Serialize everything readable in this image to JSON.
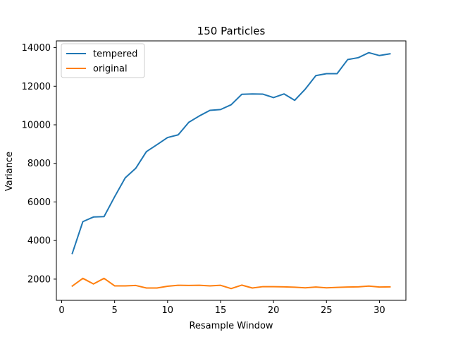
{
  "chart_data": {
    "type": "line",
    "title": "150 Particles",
    "xlabel": "Resample Window",
    "ylabel": "Variance",
    "xlim": [
      -0.5,
      32.5
    ],
    "ylim": [
      900,
      14350
    ],
    "xticks": [
      0,
      5,
      10,
      15,
      20,
      25,
      30
    ],
    "yticks": [
      2000,
      4000,
      6000,
      8000,
      10000,
      12000,
      14000
    ],
    "grid": false,
    "legend_position": "top-left",
    "x": [
      1,
      2,
      3,
      4,
      5,
      6,
      7,
      8,
      9,
      10,
      11,
      12,
      13,
      14,
      15,
      16,
      17,
      18,
      19,
      20,
      21,
      22,
      23,
      24,
      25,
      26,
      27,
      28,
      29,
      30,
      31
    ],
    "series": [
      {
        "name": "tempered",
        "color": "#1f77b4",
        "values": [
          3330,
          4980,
          5220,
          5240,
          6270,
          7250,
          7750,
          8610,
          8970,
          9340,
          9480,
          10130,
          10460,
          10750,
          10790,
          11040,
          11580,
          11600,
          11590,
          11410,
          11600,
          11270,
          11850,
          12550,
          12650,
          12650,
          13380,
          13480,
          13740,
          13590,
          13680
        ]
      },
      {
        "name": "original",
        "color": "#ff7f0e",
        "values": [
          1640,
          2040,
          1750,
          2040,
          1650,
          1650,
          1670,
          1540,
          1540,
          1630,
          1680,
          1670,
          1680,
          1650,
          1680,
          1510,
          1690,
          1540,
          1610,
          1610,
          1600,
          1580,
          1550,
          1590,
          1550,
          1570,
          1590,
          1600,
          1640,
          1590,
          1600
        ]
      }
    ]
  }
}
